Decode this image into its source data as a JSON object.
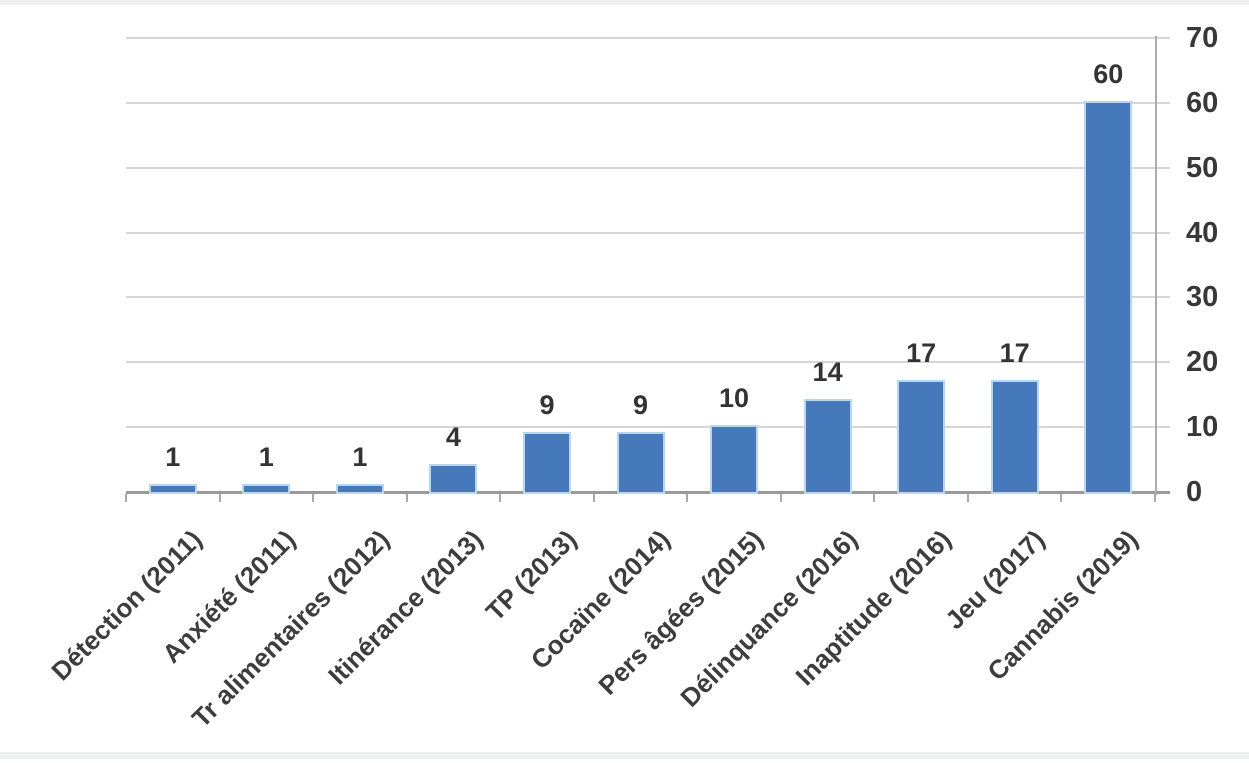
{
  "chart_data": {
    "type": "bar",
    "title": "",
    "xlabel": "",
    "ylabel": "",
    "categories": [
      "Détection (2011)",
      "Anxiété (2011)",
      "Tr alimentaires (2012)",
      "Itinérance (2013)",
      "TP (2013)",
      "Cocaïne (2014)",
      "Pers âgées (2015)",
      "Délinquance (2016)",
      "Inaptitude (2016)",
      "Jeu (2017)",
      "Cannabis (2019)"
    ],
    "values": [
      1,
      1,
      1,
      4,
      9,
      9,
      10,
      14,
      17,
      17,
      60
    ],
    "data_labels": [
      "1",
      "1",
      "1",
      "4",
      "9",
      "9",
      "10",
      "14",
      "17",
      "17",
      "60"
    ],
    "yticks": [
      "0",
      "10",
      "20",
      "30",
      "40",
      "50",
      "60",
      "70"
    ],
    "ylim": [
      0,
      70
    ],
    "ytick_step": 10,
    "value_axis_side": "right",
    "grid": true,
    "legend_position": "none",
    "bar_color": "#4679bc",
    "bar_border_color": "#b9d6ef",
    "gridline_color": "#d6d6d6",
    "axis_line_color": "#a9a9a9",
    "text_color": "#383838"
  }
}
